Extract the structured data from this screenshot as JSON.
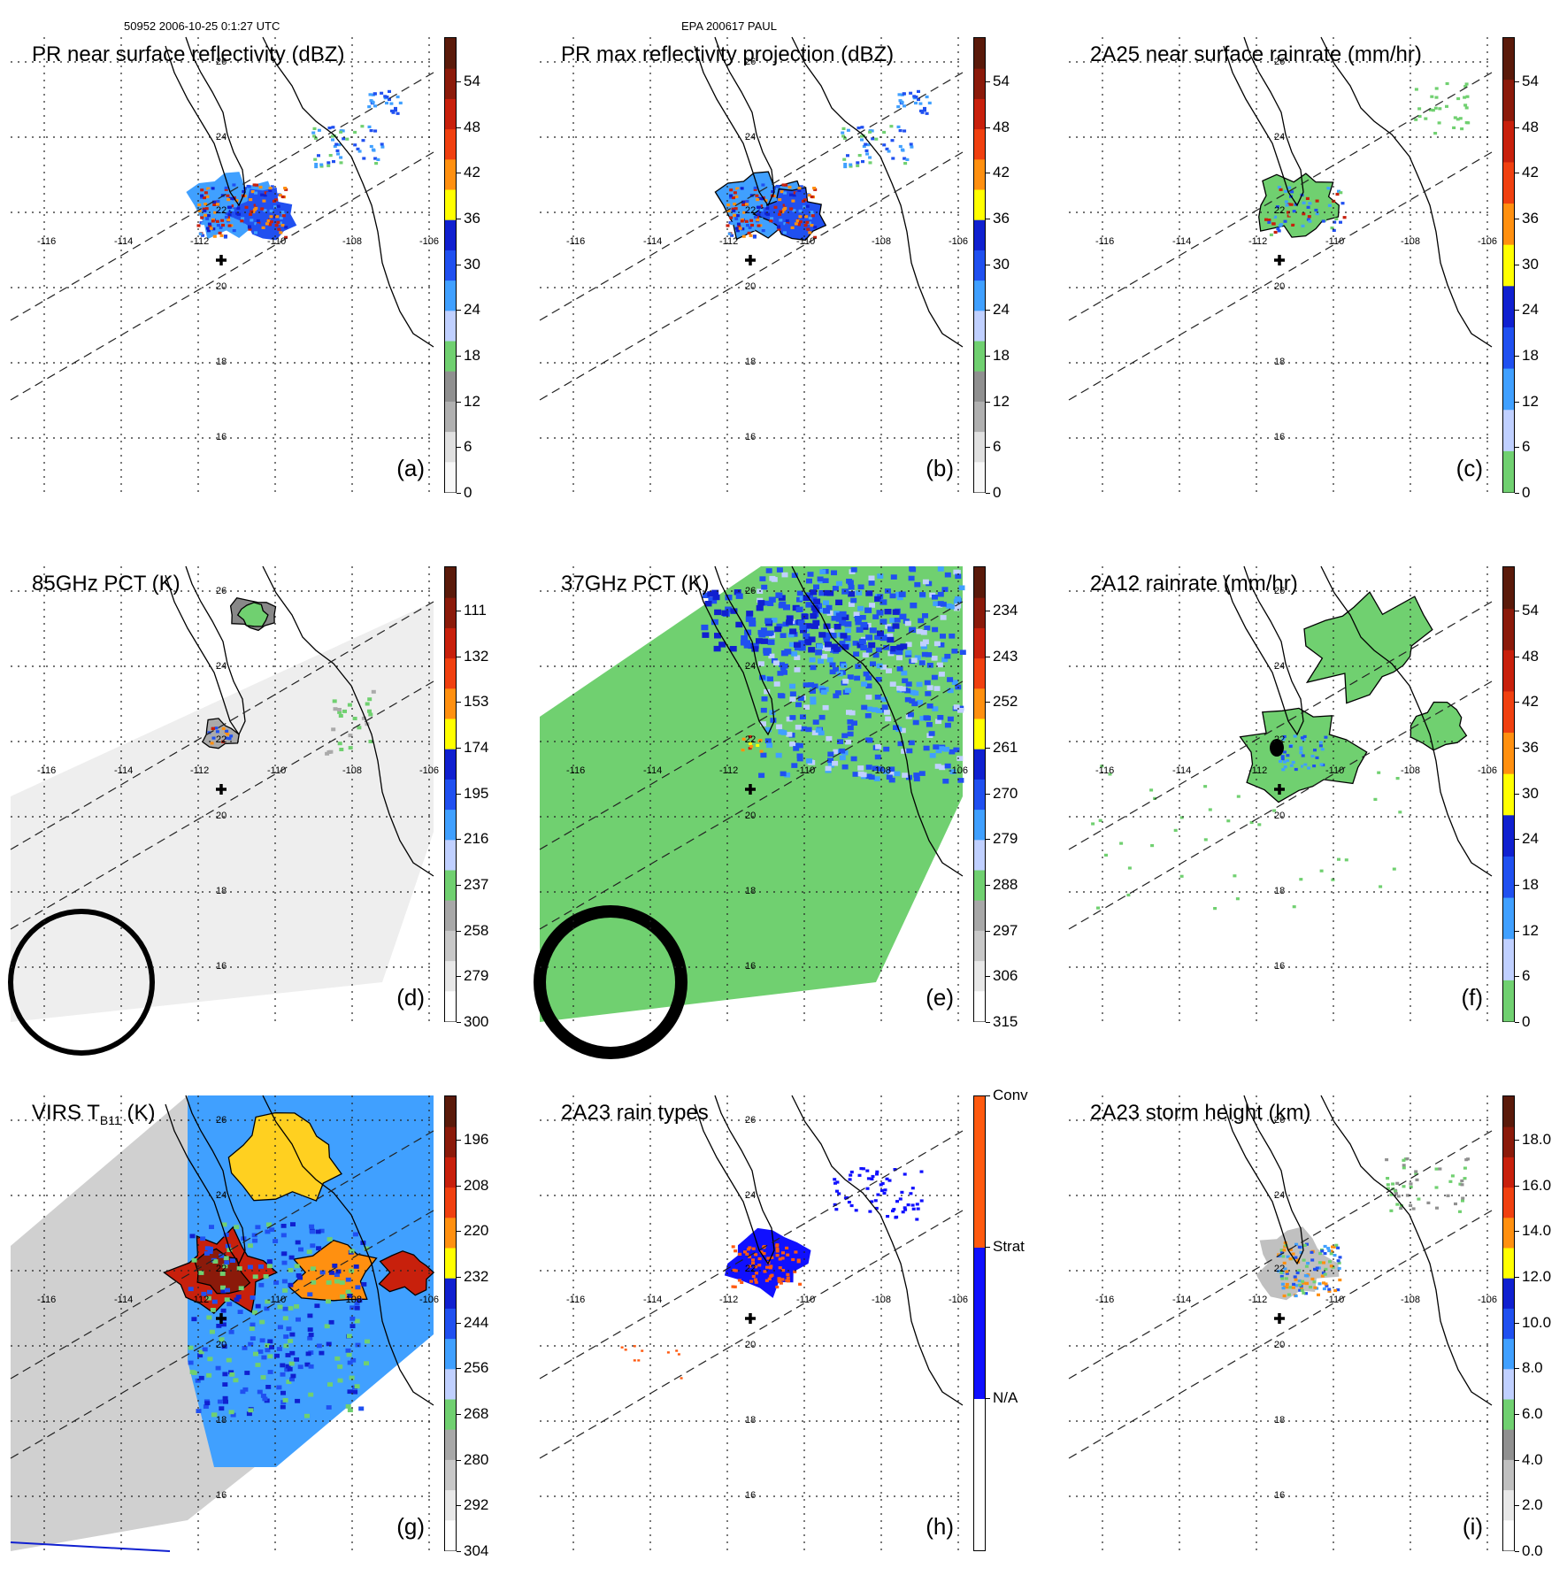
{
  "header": {
    "orbit_time": "50952 2006-10-25 0:1:27 UTC",
    "storm": "EPA 200617 PAUL"
  },
  "panels": [
    {
      "id": "a",
      "title": "PR near surface reflectivity (dBZ)",
      "label": "(a)",
      "ticks": [
        "54",
        "48",
        "42",
        "36",
        "30",
        "24",
        "18",
        "12",
        "6",
        "0"
      ],
      "scheme": "dbz",
      "field": "pr"
    },
    {
      "id": "b",
      "title": "PR max reflectivity projection (dBZ)",
      "label": "(b)",
      "ticks": [
        "54",
        "48",
        "42",
        "36",
        "30",
        "24",
        "18",
        "12",
        "6",
        "0"
      ],
      "scheme": "dbz",
      "field": "prmax"
    },
    {
      "id": "c",
      "title": "2A25 near surface rainrate (mm/hr)",
      "label": "(c)",
      "ticks": [
        "54",
        "48",
        "42",
        "36",
        "30",
        "24",
        "18",
        "12",
        "6",
        "0"
      ],
      "scheme": "rain",
      "field": "rain25"
    },
    {
      "id": "d",
      "title": "85GHz PCT (K)",
      "label": "(d)",
      "ticks": [
        "111",
        "132",
        "153",
        "174",
        "195",
        "216",
        "237",
        "258",
        "279",
        "300"
      ],
      "scheme": "pct",
      "field": "pct85"
    },
    {
      "id": "e",
      "title": "37GHz PCT (K)",
      "label": "(e)",
      "ticks": [
        "234",
        "243",
        "252",
        "261",
        "270",
        "279",
        "288",
        "297",
        "306",
        "315"
      ],
      "scheme": "pct",
      "field": "pct37"
    },
    {
      "id": "f",
      "title": "2A12 rainrate (mm/hr)",
      "label": "(f)",
      "ticks": [
        "54",
        "48",
        "42",
        "36",
        "30",
        "24",
        "18",
        "12",
        "6",
        "0"
      ],
      "scheme": "rain",
      "field": "rain12"
    },
    {
      "id": "g",
      "title": "VIRS T",
      "title_sub": "B11",
      "title_end": " (K)",
      "label": "(g)",
      "ticks": [
        "196",
        "208",
        "220",
        "232",
        "244",
        "256",
        "268",
        "280",
        "292",
        "304"
      ],
      "scheme": "pct",
      "field": "virs"
    },
    {
      "id": "h",
      "title": "2A23 rain types",
      "label": "(h)",
      "ticks": [
        "Conv",
        "Strat",
        "N/A"
      ],
      "scheme": "types",
      "field": "types"
    },
    {
      "id": "i",
      "title": "2A23 storm height (km)",
      "label": "(i)",
      "ticks": [
        "18.0",
        "16.0",
        "14.0",
        "12.0",
        "10.0",
        "8.0",
        "6.0",
        "4.0",
        "2.0",
        "0.0"
      ],
      "scheme": "height",
      "field": "height"
    }
  ],
  "map_grid": {
    "lon_labels": [
      "-116",
      "-114",
      "-112",
      "-110",
      "-108",
      "-106"
    ],
    "lat_labels": [
      "26",
      "24",
      "22",
      "20",
      "18",
      "16"
    ]
  },
  "colors": {
    "dbz": [
      "#5a1a0a",
      "#8b1a0a",
      "#c8200c",
      "#f04010",
      "#ff9010",
      "#ffff00",
      "#1020d0",
      "#2050f0",
      "#40a0ff",
      "#c0d0ff",
      "#70d070",
      "#909090",
      "#c0c0c0",
      "#f0f0f0"
    ],
    "rain": [
      "#5a1a0a",
      "#8b1a0a",
      "#c8200c",
      "#f04010",
      "#ff9010",
      "#ffff00",
      "#1020d0",
      "#2050f0",
      "#40a0ff",
      "#c0d0ff",
      "#70d070"
    ],
    "types": [
      "#ff5a10",
      "#1010ff",
      "#ffffff"
    ]
  }
}
